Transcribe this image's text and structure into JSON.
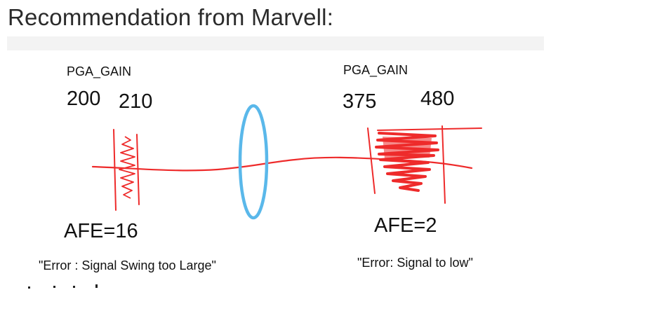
{
  "title": "Recommendation from Marvell:",
  "left": {
    "pga_label": "PGA_GAIN",
    "value_a": "200",
    "value_b": "210",
    "afe": "AFE=16",
    "error": "\"Error : Signal Swing too Large\""
  },
  "right": {
    "pga_label": "PGA_GAIN",
    "value_a": "375",
    "value_b": "480",
    "afe": "AFE=2",
    "error": "\"Error: Signal to low\""
  },
  "colors": {
    "ink": "#ee2b2b",
    "ellipse": "#5ab8ea",
    "text": "#111111"
  }
}
